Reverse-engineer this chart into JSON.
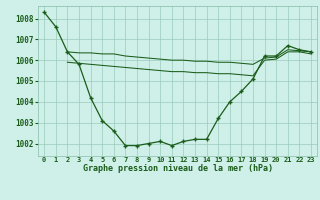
{
  "background_color": "#cff0e8",
  "grid_color": "#99ccbb",
  "line_color": "#1a5c1a",
  "title": "Graphe pression niveau de la mer (hPa)",
  "xlim": [
    -0.5,
    23.5
  ],
  "ylim": [
    1001.4,
    1008.6
  ],
  "yticks": [
    1002,
    1003,
    1004,
    1005,
    1006,
    1007,
    1008
  ],
  "xticks": [
    0,
    1,
    2,
    3,
    4,
    5,
    6,
    7,
    8,
    9,
    10,
    11,
    12,
    13,
    14,
    15,
    16,
    17,
    18,
    19,
    20,
    21,
    22,
    23
  ],
  "xtick_labels": [
    "0",
    "1",
    "2",
    "3",
    "4",
    "5",
    "6",
    "7",
    "8",
    "9",
    "10",
    "11",
    "12",
    "13",
    "14",
    "15",
    "16",
    "17",
    "18",
    "19",
    "20",
    "21",
    "22",
    "23"
  ],
  "s1_x": [
    0,
    1,
    2,
    3,
    4,
    5,
    6,
    7,
    8,
    9,
    10,
    11,
    12,
    13,
    14,
    15,
    16,
    17,
    18,
    19,
    20,
    21,
    22,
    23
  ],
  "s1_y": [
    1008.3,
    1007.6,
    1006.4,
    1005.8,
    1004.2,
    1003.1,
    1002.6,
    1001.9,
    1001.9,
    1002.0,
    1002.1,
    1001.9,
    1002.1,
    1002.2,
    1002.2,
    1003.2,
    1004.0,
    1004.5,
    1005.1,
    1006.2,
    1006.2,
    1006.7,
    1006.5,
    1006.4
  ],
  "s2_x": [
    2,
    3,
    4,
    5,
    6,
    7,
    8,
    9,
    10,
    11,
    12,
    13,
    14,
    15,
    16,
    17,
    18,
    19,
    20,
    21,
    22,
    23
  ],
  "s2_y": [
    1006.4,
    1006.35,
    1006.35,
    1006.3,
    1006.3,
    1006.2,
    1006.15,
    1006.1,
    1006.05,
    1006.0,
    1006.0,
    1005.95,
    1005.95,
    1005.9,
    1005.9,
    1005.85,
    1005.8,
    1006.1,
    1006.15,
    1006.5,
    1006.45,
    1006.4
  ],
  "s3_x": [
    2,
    3,
    4,
    5,
    6,
    7,
    8,
    9,
    10,
    11,
    12,
    13,
    14,
    15,
    16,
    17,
    18,
    19,
    20,
    21,
    22,
    23
  ],
  "s3_y": [
    1005.9,
    1005.85,
    1005.8,
    1005.75,
    1005.7,
    1005.65,
    1005.6,
    1005.55,
    1005.5,
    1005.45,
    1005.45,
    1005.4,
    1005.4,
    1005.35,
    1005.35,
    1005.3,
    1005.25,
    1006.0,
    1006.05,
    1006.4,
    1006.4,
    1006.3
  ]
}
